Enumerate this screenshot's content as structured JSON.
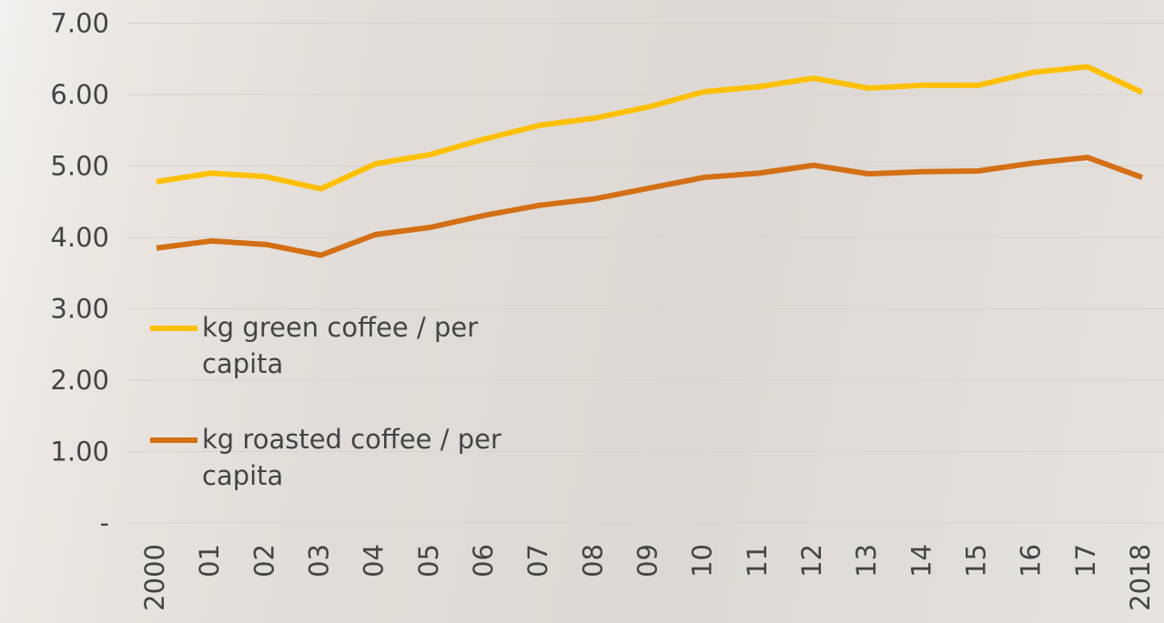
{
  "chart_data": {
    "type": "line",
    "categories": [
      "2000",
      "01",
      "02",
      "03",
      "04",
      "05",
      "06",
      "07",
      "08",
      "09",
      "10",
      "11",
      "12",
      "13",
      "14",
      "15",
      "16",
      "17",
      "2018"
    ],
    "series": [
      {
        "name": "kg green coffee / per capita",
        "color": "#ffc000",
        "values": [
          4.78,
          4.9,
          4.85,
          4.68,
          5.03,
          5.16,
          5.38,
          5.57,
          5.67,
          5.83,
          6.04,
          6.11,
          6.23,
          6.09,
          6.13,
          6.13,
          6.31,
          6.39,
          6.03
        ]
      },
      {
        "name": "kg roasted coffee / per capita",
        "color": "#d46f16",
        "values": [
          3.85,
          3.95,
          3.9,
          3.75,
          4.04,
          4.14,
          4.31,
          4.45,
          4.54,
          4.69,
          4.84,
          4.9,
          5.01,
          4.89,
          4.92,
          4.93,
          5.04,
          5.12,
          4.84
        ]
      }
    ],
    "ylim": [
      0,
      7
    ],
    "yticks": [
      {
        "value": 0,
        "label": "-"
      },
      {
        "value": 1,
        "label": "1.00"
      },
      {
        "value": 2,
        "label": "2.00"
      },
      {
        "value": 3,
        "label": "3.00"
      },
      {
        "value": 4,
        "label": "4.00"
      },
      {
        "value": 5,
        "label": "5.00"
      },
      {
        "value": 6,
        "label": "6.00"
      },
      {
        "value": 7,
        "label": "7.00"
      }
    ],
    "grid": true,
    "legend": "left"
  }
}
